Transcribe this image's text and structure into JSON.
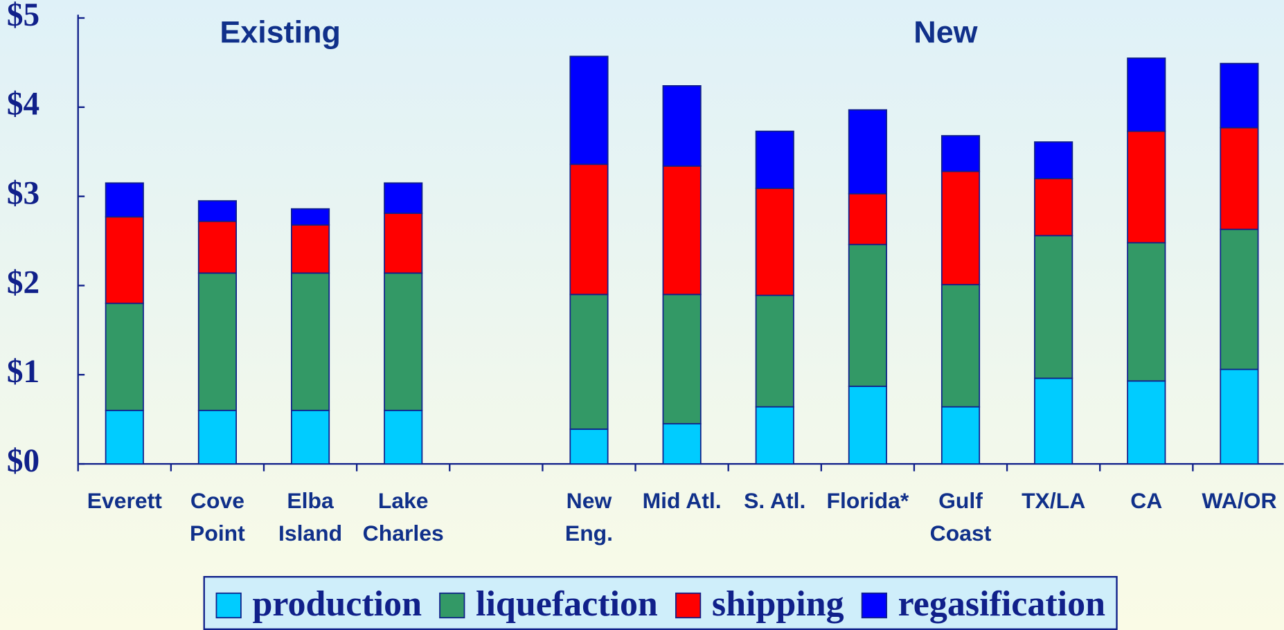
{
  "chart_data": {
    "type": "stacked_bar",
    "annotations": [
      "Existing",
      "New"
    ],
    "categories": [
      "Everett",
      "Cove\nPoint",
      "Elba\nIsland",
      "Lake\nCharles",
      null,
      "New\nEng.",
      "Mid Atl.",
      "S. Atl.",
      "Florida*",
      "Gulf\nCoast",
      "TX/LA",
      "CA",
      "WA/OR"
    ],
    "series": [
      {
        "name": "production",
        "color": "#00ccff",
        "values": [
          0.6,
          0.6,
          0.6,
          0.6,
          null,
          0.39,
          0.45,
          0.64,
          0.87,
          0.64,
          0.96,
          0.93,
          1.06
        ]
      },
      {
        "name": "liquefaction",
        "color": "#339966",
        "values": [
          1.2,
          1.54,
          1.54,
          1.54,
          null,
          1.51,
          1.45,
          1.25,
          1.59,
          1.37,
          1.6,
          1.55,
          1.57
        ]
      },
      {
        "name": "shipping",
        "color": "#ff0000",
        "values": [
          0.97,
          0.58,
          0.54,
          0.67,
          null,
          1.46,
          1.44,
          1.2,
          0.57,
          1.27,
          0.64,
          1.25,
          1.14
        ]
      },
      {
        "name": "regasification",
        "color": "#0000ff",
        "values": [
          0.38,
          0.23,
          0.18,
          0.34,
          null,
          1.21,
          0.9,
          0.64,
          0.94,
          0.4,
          0.41,
          0.82,
          0.72
        ]
      }
    ],
    "ylim": [
      0,
      5
    ],
    "yticks": [
      {
        "value": 0,
        "label": "$0"
      },
      {
        "value": 1,
        "label": "$1"
      },
      {
        "value": 2,
        "label": "$2"
      },
      {
        "value": 3,
        "label": "$3"
      },
      {
        "value": 4,
        "label": "$4"
      },
      {
        "value": 5,
        "label": "$5"
      }
    ],
    "grid": false,
    "legend": "bottom"
  }
}
